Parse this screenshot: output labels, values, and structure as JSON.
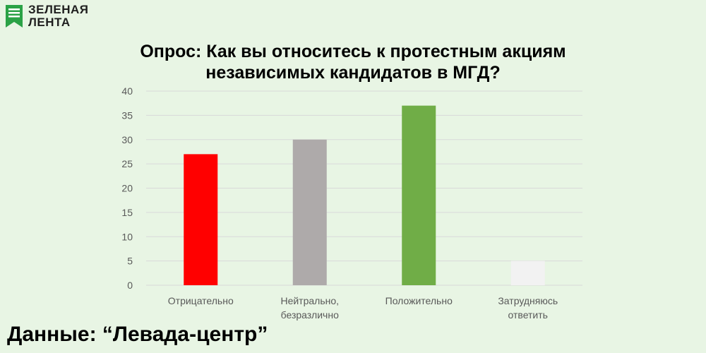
{
  "logo": {
    "line1": "ЗЕЛЕНАЯ",
    "line2": "ЛЕНТА",
    "icon": "green-flag-document-icon"
  },
  "source_label": "Данные: “Левада-центр”",
  "colors": {
    "background": "#e8f5e4",
    "gridline": "#d9d9d9",
    "axis_text": "#595959",
    "logo_green": "#2aa246"
  },
  "chart_data": {
    "type": "bar",
    "title_lines": [
      "Опрос: Как вы относитесь к протестным акциям",
      "независимых кандидатов в МГД?"
    ],
    "categories": [
      [
        "Отрицательно"
      ],
      [
        "Нейтрально,",
        "безразлично"
      ],
      [
        "Положительно"
      ],
      [
        "Затрудняюсь",
        "ответить"
      ]
    ],
    "values": [
      27,
      30,
      37,
      5
    ],
    "bar_colors": [
      "#ff0000",
      "#aeaaaa",
      "#70ad47",
      "#f2f2f2"
    ],
    "ylim": [
      0,
      40
    ],
    "yticks": [
      0,
      5,
      10,
      15,
      20,
      25,
      30,
      35,
      40
    ],
    "grid": true,
    "legend": false,
    "xlabel": "",
    "ylabel": ""
  }
}
